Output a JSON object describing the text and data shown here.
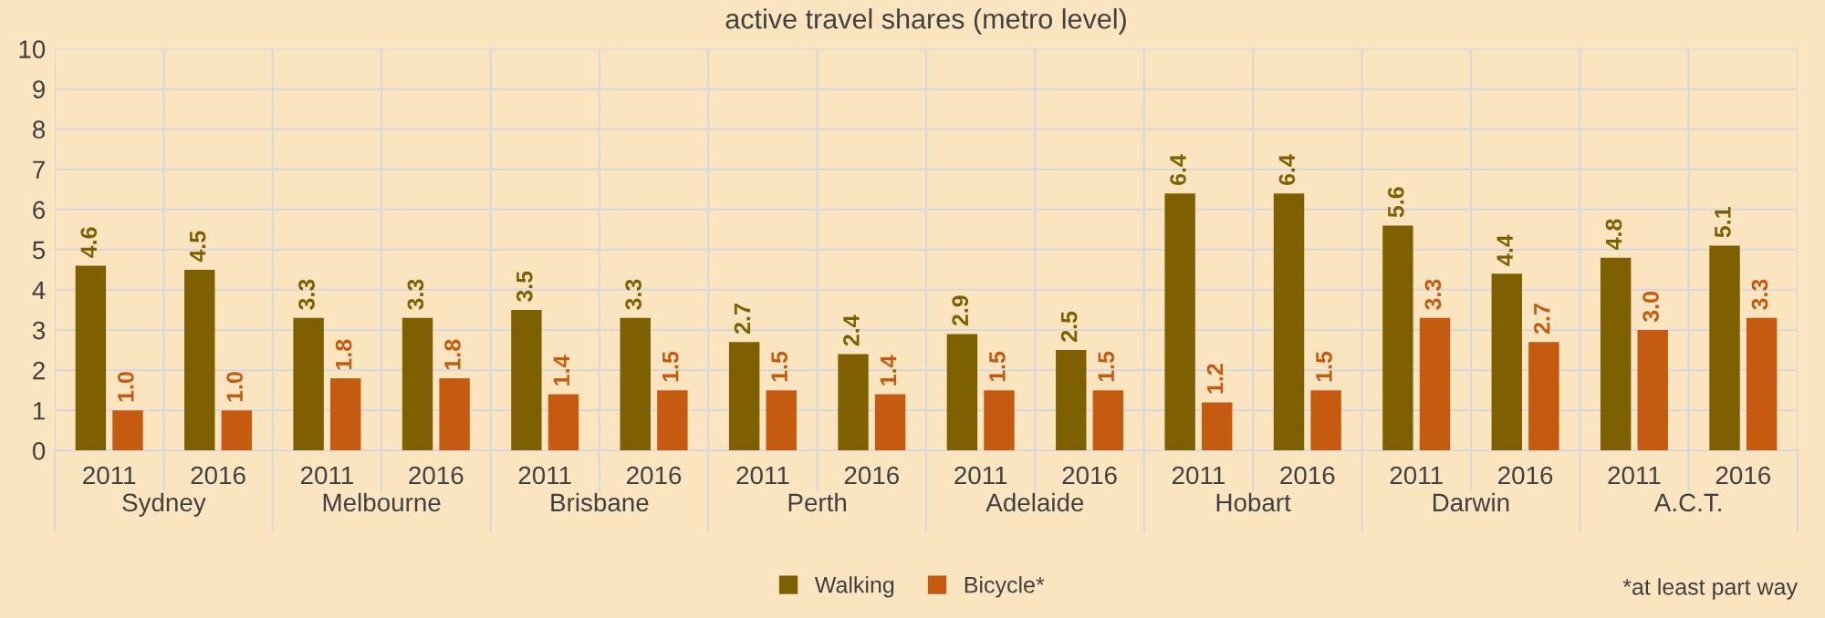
{
  "chart_data": {
    "type": "bar",
    "title": "active travel shares (metro level)",
    "categories": [
      "2011",
      "2016",
      "2011",
      "2016",
      "2011",
      "2016",
      "2011",
      "2016",
      "2011",
      "2016",
      "2011",
      "2016",
      "2011",
      "2016",
      "2011",
      "2016"
    ],
    "series": [
      {
        "name": "Walking",
        "color": "#7f6000",
        "values": [
          4.6,
          4.5,
          3.3,
          3.3,
          3.5,
          3.3,
          2.7,
          2.4,
          2.9,
          2.5,
          6.4,
          6.4,
          5.6,
          4.4,
          4.8,
          5.1
        ],
        "value_labels": [
          "4.6",
          "4.5",
          "3.3",
          "3.3",
          "3.5",
          "3.3",
          "2.7",
          "2.4",
          "2.9",
          "2.5",
          "6.4",
          "6.4",
          "5.6",
          "4.4",
          "4.8",
          "5.1"
        ]
      },
      {
        "name": "Bicycle*",
        "color": "#c55a11",
        "values": [
          1.0,
          1.0,
          1.8,
          1.8,
          1.4,
          1.5,
          1.5,
          1.4,
          1.5,
          1.5,
          1.2,
          1.5,
          3.3,
          2.7,
          3.0,
          3.3
        ],
        "value_labels": [
          "1.0",
          "1.0",
          "1.8",
          "1.8",
          "1.4",
          "1.5",
          "1.5",
          "1.4",
          "1.5",
          "1.5",
          "1.2",
          "1.5",
          "3.3",
          "2.7",
          "3.0",
          "3.3"
        ]
      }
    ],
    "annotations": [
      "Sydney",
      "Melbourne",
      "Brisbane",
      "Perth",
      "Adelaide",
      "Hobart",
      "Darwin",
      "A.C.T.",
      "*at least part way"
    ],
    "ylim": [
      0,
      10
    ],
    "yticks": [
      0,
      1,
      2,
      3,
      4,
      5,
      6,
      7,
      8,
      9,
      10
    ],
    "grid": true,
    "legend": "bottom"
  }
}
